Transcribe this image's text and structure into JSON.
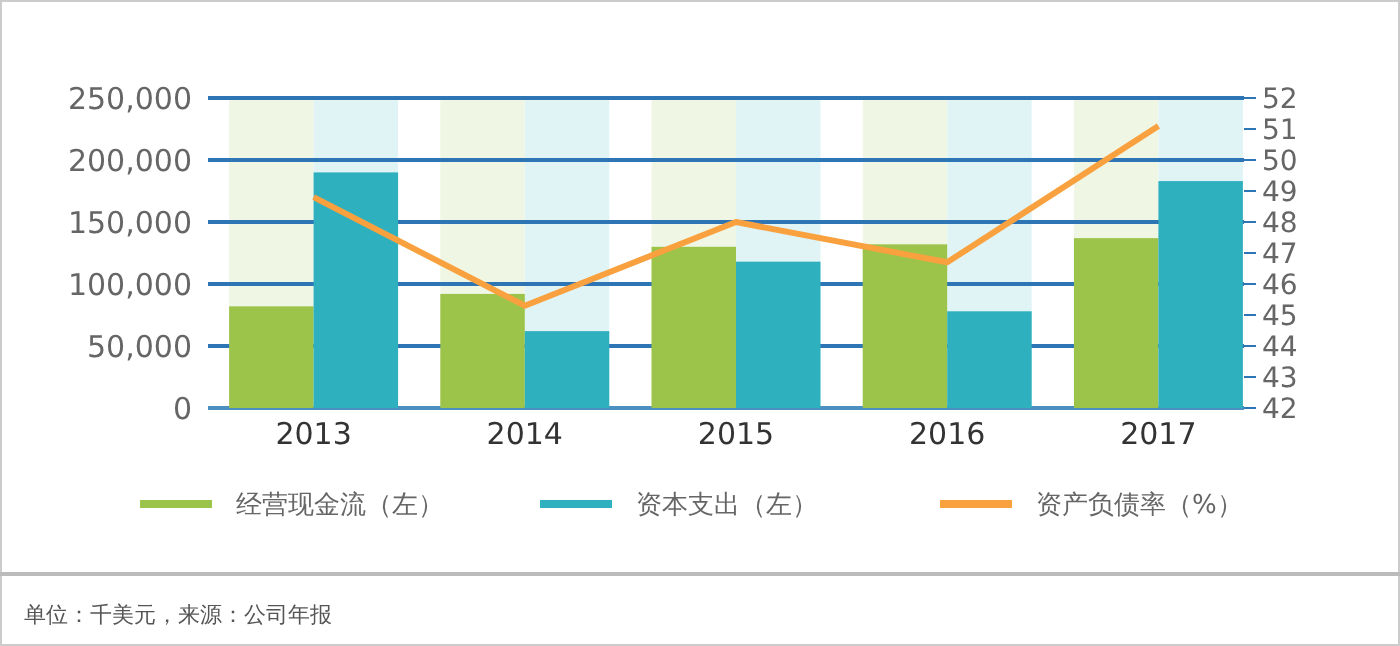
{
  "chart_data": {
    "type": "bar",
    "categories": [
      "2013",
      "2014",
      "2015",
      "2016",
      "2017"
    ],
    "series": [
      {
        "name": "经营现金流（左）",
        "color": "#9dc44a",
        "values": [
          82000,
          92000,
          130000,
          132000,
          137000
        ]
      },
      {
        "name": "资本支出（左）",
        "color": "#2fb0bf",
        "values": [
          190000,
          62000,
          118000,
          78000,
          183000
        ]
      },
      {
        "name": "资产负债率（%）",
        "type": "line",
        "axis": "y2",
        "color": "#f9a13f",
        "values": [
          48.8,
          45.3,
          48.0,
          46.7,
          51.1
        ]
      }
    ],
    "ylim": [
      0,
      250000
    ],
    "yticks": [
      {
        "value": 0,
        "label": "0"
      },
      {
        "value": 50000,
        "label": "50,000"
      },
      {
        "value": 100000,
        "label": "100,000"
      },
      {
        "value": 150000,
        "label": "150,000"
      },
      {
        "value": 200000,
        "label": "200,000"
      },
      {
        "value": 250000,
        "label": "250,000"
      }
    ],
    "y2lim": [
      42,
      52
    ],
    "y2ticks": [
      42,
      43,
      44,
      45,
      46,
      47,
      48,
      49,
      50,
      51,
      52
    ],
    "grid": "y",
    "legend": "bottom",
    "marker": "none",
    "annotations": [
      "单位：千美元，来源：公司年报"
    ]
  }
}
